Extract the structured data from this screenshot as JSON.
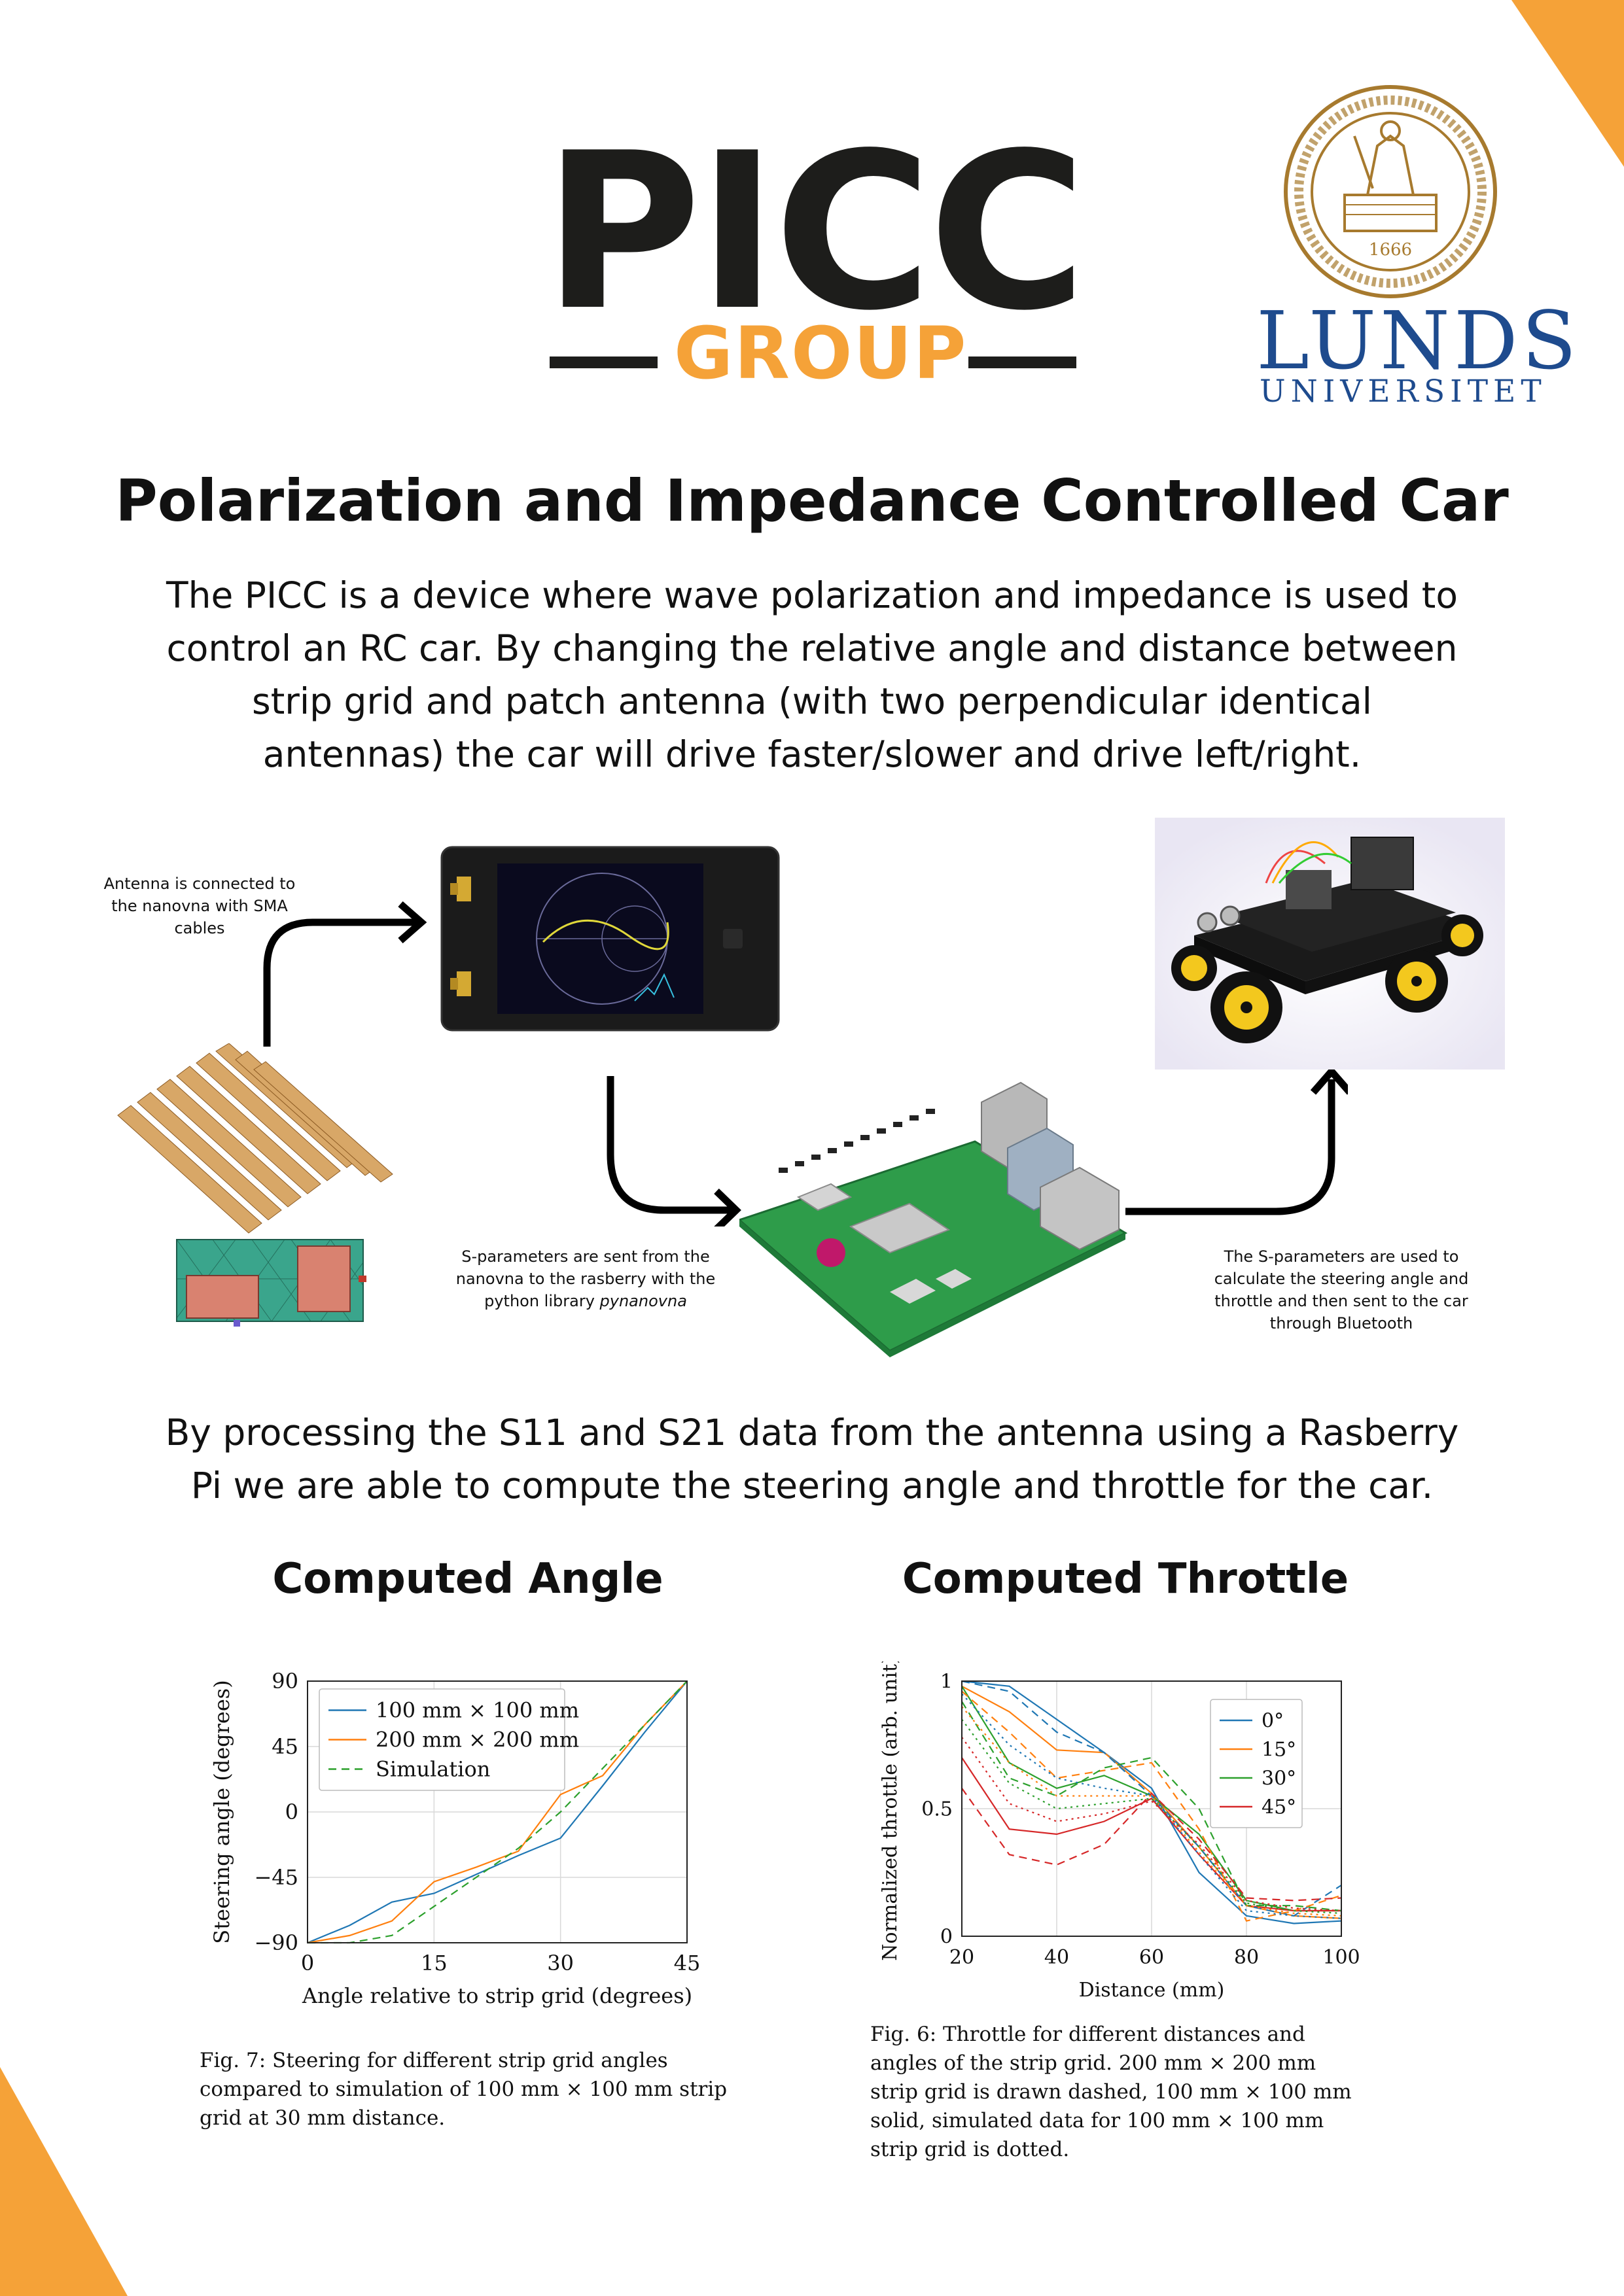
{
  "logo": {
    "letters": "PICC",
    "group": "GROUP",
    "lund_name": "LUNDS",
    "lund_sub": "UNIVERSITET",
    "seal_year": "1666"
  },
  "title": "Polarization and Impedance Controlled Car",
  "intro": "The PICC is a device where wave polarization and impedance is used to control an RC car. By changing the relative angle and distance between strip grid and patch antenna (with two perpendicular identical antennas) the car will drive faster/slower and drive left/right.",
  "diagram": {
    "caption_antenna": "Antenna is connected to the nanovna with SMA cables",
    "caption_sparams_pre": "S-parameters are sent from the nanovna to the rasberry with the python library ",
    "caption_sparams_lib": "pynanovna",
    "caption_bluetooth": "The S-parameters are used to calculate the steering angle and throttle and then sent to the car through Bluetooth"
  },
  "middle_text": "By processing the S11 and S21 data from the antenna using a Rasberry Pi we are able to compute the steering angle and throttle for the car.",
  "headings": {
    "angle": "Computed Angle",
    "throttle": "Computed Throttle"
  },
  "captions": {
    "angle": "Fig. 7: Steering for different strip grid angles compared to simulation of 100 mm × 100 mm strip grid at 30 mm distance.",
    "throttle": "Fig. 6: Throttle for different distances and angles of the strip grid. 200 mm × 200 mm strip grid is drawn dashed, 100 mm × 100 mm solid, simulated data for 100 mm × 100 mm strip grid is dotted."
  },
  "colors": {
    "accent_orange": "#f5a238",
    "logo_dark": "#1d1d1b",
    "lund_blue": "#1e4b8e",
    "seal_gold": "#a77a2e"
  },
  "chart_data": [
    {
      "type": "line",
      "xlabel": "Angle relative to strip grid (degrees)",
      "ylabel": "Steering angle (degrees)",
      "xlim": [
        0,
        45
      ],
      "ylim": [
        -90,
        90
      ],
      "xticks": [
        0,
        15,
        30,
        45
      ],
      "yticks": [
        -90,
        -45,
        0,
        45,
        90
      ],
      "grid": true,
      "legend": "top-left",
      "series": [
        {
          "name": "100 mm × 100 mm",
          "style": "solid",
          "color": "#1f77b4",
          "x": [
            0,
            5,
            10,
            15,
            20,
            25,
            30,
            35,
            40,
            45
          ],
          "y": [
            -90,
            -78,
            -62,
            -56,
            -43,
            -30,
            -18,
            18,
            55,
            90
          ]
        },
        {
          "name": "200 mm × 200 mm",
          "style": "solid",
          "color": "#ff7f0e",
          "x": [
            0,
            5,
            10,
            15,
            20,
            25,
            30,
            35,
            40,
            45
          ],
          "y": [
            -90,
            -85,
            -75,
            -48,
            -38,
            -27,
            12,
            25,
            60,
            90
          ]
        },
        {
          "name": "Simulation",
          "style": "dashed",
          "color": "#2ca02c",
          "x": [
            0,
            5,
            10,
            15,
            20,
            25,
            30,
            35,
            40,
            45
          ],
          "y": [
            -90,
            -90,
            -85,
            -65,
            -45,
            -25,
            0,
            30,
            60,
            90
          ]
        }
      ]
    },
    {
      "type": "line",
      "xlabel": "Distance (mm)",
      "ylabel": "Normalized throttle (arb. unit)",
      "xlim": [
        20,
        100
      ],
      "ylim": [
        0,
        1
      ],
      "xticks": [
        20,
        40,
        60,
        80,
        100
      ],
      "yticks": [
        0,
        0.5,
        1
      ],
      "yticklabels": [
        "0",
        "0.5",
        "1"
      ],
      "grid": true,
      "legend": "top-right",
      "series": [
        {
          "name": "0°",
          "style": "solid",
          "color": "#1f77b4",
          "x": [
            20,
            30,
            40,
            50,
            60,
            70,
            80,
            90,
            100
          ],
          "y": [
            1.0,
            0.98,
            0.85,
            0.72,
            0.58,
            0.25,
            0.08,
            0.05,
            0.06
          ]
        },
        {
          "name": "15°",
          "style": "solid",
          "color": "#ff7f0e",
          "x": [
            20,
            30,
            40,
            50,
            60,
            70,
            80,
            90,
            100
          ],
          "y": [
            0.98,
            0.88,
            0.73,
            0.72,
            0.56,
            0.35,
            0.12,
            0.08,
            0.07
          ]
        },
        {
          "name": "30°",
          "style": "solid",
          "color": "#2ca02c",
          "x": [
            20,
            30,
            40,
            50,
            60,
            70,
            80,
            90,
            100
          ],
          "y": [
            0.98,
            0.68,
            0.58,
            0.63,
            0.55,
            0.4,
            0.14,
            0.1,
            0.1
          ]
        },
        {
          "name": "45°",
          "style": "solid",
          "color": "#d62728",
          "x": [
            20,
            30,
            40,
            50,
            60,
            70,
            80,
            90,
            100
          ],
          "y": [
            0.7,
            0.42,
            0.4,
            0.45,
            0.54,
            0.32,
            0.12,
            0.1,
            0.1
          ]
        },
        {
          "style": "dashed",
          "color": "#1f77b4",
          "x": [
            20,
            30,
            40,
            50,
            60,
            70,
            80,
            90,
            100
          ],
          "y": [
            1.0,
            0.96,
            0.8,
            0.72,
            0.55,
            0.35,
            0.12,
            0.08,
            0.2
          ]
        },
        {
          "style": "dashed",
          "color": "#ff7f0e",
          "x": [
            20,
            30,
            40,
            50,
            60,
            70,
            80,
            90,
            100
          ],
          "y": [
            0.96,
            0.8,
            0.62,
            0.65,
            0.68,
            0.42,
            0.06,
            0.1,
            0.16
          ]
        },
        {
          "style": "dashed",
          "color": "#2ca02c",
          "x": [
            20,
            30,
            40,
            50,
            60,
            70,
            80,
            90,
            100
          ],
          "y": [
            0.92,
            0.62,
            0.55,
            0.66,
            0.7,
            0.5,
            0.12,
            0.12,
            0.1
          ]
        },
        {
          "style": "dashed",
          "color": "#d62728",
          "x": [
            20,
            30,
            40,
            50,
            60,
            70,
            80,
            90,
            100
          ],
          "y": [
            0.58,
            0.32,
            0.28,
            0.36,
            0.56,
            0.38,
            0.15,
            0.14,
            0.15
          ]
        },
        {
          "style": "dotted",
          "color": "#1f77b4",
          "x": [
            20,
            30,
            40,
            50,
            60,
            70,
            80,
            90,
            100
          ],
          "y": [
            0.95,
            0.75,
            0.62,
            0.58,
            0.55,
            0.32,
            0.1,
            0.08,
            0.07
          ]
        },
        {
          "style": "dotted",
          "color": "#ff7f0e",
          "x": [
            20,
            30,
            40,
            50,
            60,
            70,
            80,
            90,
            100
          ],
          "y": [
            0.9,
            0.68,
            0.55,
            0.55,
            0.55,
            0.33,
            0.12,
            0.09,
            0.08
          ]
        },
        {
          "style": "dotted",
          "color": "#2ca02c",
          "x": [
            20,
            30,
            40,
            50,
            60,
            70,
            80,
            90,
            100
          ],
          "y": [
            0.85,
            0.6,
            0.5,
            0.52,
            0.54,
            0.35,
            0.13,
            0.1,
            0.09
          ]
        },
        {
          "style": "dotted",
          "color": "#d62728",
          "x": [
            20,
            30,
            40,
            50,
            60,
            70,
            80,
            90,
            100
          ],
          "y": [
            0.78,
            0.52,
            0.45,
            0.48,
            0.53,
            0.36,
            0.14,
            0.11,
            0.1
          ]
        }
      ]
    }
  ]
}
